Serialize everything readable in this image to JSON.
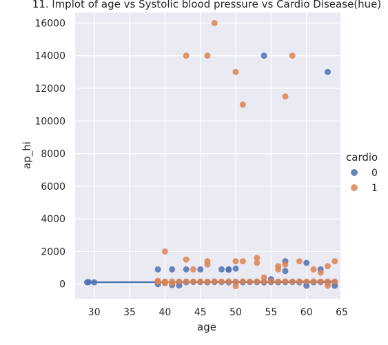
{
  "chart_data": {
    "type": "scatter",
    "title": "11. lmplot of age vs Systolic blood pressure vs Cardio Disease(hue)",
    "xlabel": "age",
    "ylabel": "ap_hi",
    "xlim": [
      27.3,
      64.8
    ],
    "ylim": [
      -900,
      16650
    ],
    "xticks": [
      30,
      35,
      40,
      45,
      50,
      55,
      60,
      65
    ],
    "yticks": [
      0,
      2000,
      4000,
      6000,
      8000,
      10000,
      12000,
      14000,
      16000
    ],
    "grid": true,
    "legend": {
      "title": "cardio",
      "placement": "right",
      "entries": [
        "0",
        "1"
      ]
    },
    "series": [
      {
        "name": "0",
        "color": "#4c72b0",
        "points": [
          [
            29,
            110
          ],
          [
            29.2,
            120
          ],
          [
            30,
            110
          ],
          [
            39,
            120
          ],
          [
            39,
            0
          ],
          [
            39,
            900
          ],
          [
            40,
            130
          ],
          [
            40,
            80
          ],
          [
            41,
            900
          ],
          [
            41,
            -50
          ],
          [
            42,
            120
          ],
          [
            42,
            -80
          ],
          [
            43,
            900
          ],
          [
            43,
            110
          ],
          [
            44,
            130
          ],
          [
            45,
            900
          ],
          [
            45,
            120
          ],
          [
            46,
            110
          ],
          [
            47,
            130
          ],
          [
            48,
            900
          ],
          [
            48,
            120
          ],
          [
            49,
            900
          ],
          [
            49,
            880
          ],
          [
            49,
            110
          ],
          [
            50,
            950
          ],
          [
            50,
            120
          ],
          [
            51,
            110
          ],
          [
            52,
            130
          ],
          [
            53,
            120
          ],
          [
            54,
            14000
          ],
          [
            54,
            100
          ],
          [
            55,
            300
          ],
          [
            55,
            120
          ],
          [
            56,
            110
          ],
          [
            57,
            1400
          ],
          [
            57,
            800
          ],
          [
            57,
            120
          ],
          [
            58,
            130
          ],
          [
            59,
            110
          ],
          [
            60,
            1300
          ],
          [
            60,
            -100
          ],
          [
            60,
            120
          ],
          [
            61,
            110
          ],
          [
            62,
            900
          ],
          [
            62,
            120
          ],
          [
            63,
            13000
          ],
          [
            63,
            110
          ],
          [
            64,
            -100
          ],
          [
            64,
            130
          ]
        ]
      },
      {
        "name": "1",
        "color": "#dd8452",
        "points": [
          [
            39,
            200
          ],
          [
            39,
            140
          ],
          [
            40,
            2000
          ],
          [
            40,
            150
          ],
          [
            40,
            60
          ],
          [
            41,
            160
          ],
          [
            41,
            40
          ],
          [
            42,
            150
          ],
          [
            43,
            14000
          ],
          [
            43,
            1500
          ],
          [
            43,
            160
          ],
          [
            44,
            900
          ],
          [
            44,
            150
          ],
          [
            45,
            160
          ],
          [
            46,
            14000
          ],
          [
            46,
            1400
          ],
          [
            46,
            1200
          ],
          [
            46,
            150
          ],
          [
            47,
            16000
          ],
          [
            47,
            160
          ],
          [
            48,
            150
          ],
          [
            49,
            160
          ],
          [
            50,
            13000
          ],
          [
            50,
            1400
          ],
          [
            50,
            150
          ],
          [
            50,
            -120
          ],
          [
            51,
            11000
          ],
          [
            51,
            1400
          ],
          [
            51,
            160
          ],
          [
            52,
            150
          ],
          [
            53,
            1600
          ],
          [
            53,
            1300
          ],
          [
            53,
            160
          ],
          [
            54,
            400
          ],
          [
            54,
            150
          ],
          [
            55,
            160
          ],
          [
            56,
            1100
          ],
          [
            56,
            900
          ],
          [
            56,
            150
          ],
          [
            57,
            11500
          ],
          [
            57,
            1200
          ],
          [
            57,
            160
          ],
          [
            58,
            14000
          ],
          [
            58,
            150
          ],
          [
            59,
            1400
          ],
          [
            59,
            160
          ],
          [
            60,
            150
          ],
          [
            61,
            900
          ],
          [
            61,
            160
          ],
          [
            62,
            700
          ],
          [
            62,
            150
          ],
          [
            63,
            1100
          ],
          [
            63,
            -100
          ],
          [
            63,
            160
          ],
          [
            64,
            1400
          ],
          [
            64,
            150
          ]
        ]
      }
    ],
    "regression_lines": [
      {
        "series": "0",
        "x": [
          29,
          64
        ],
        "y": [
          108,
          135
        ],
        "color": "#4c72b0"
      },
      {
        "series": "1",
        "x": [
          39,
          64
        ],
        "y": [
          120,
          170
        ],
        "color": "#dd8452"
      }
    ]
  }
}
